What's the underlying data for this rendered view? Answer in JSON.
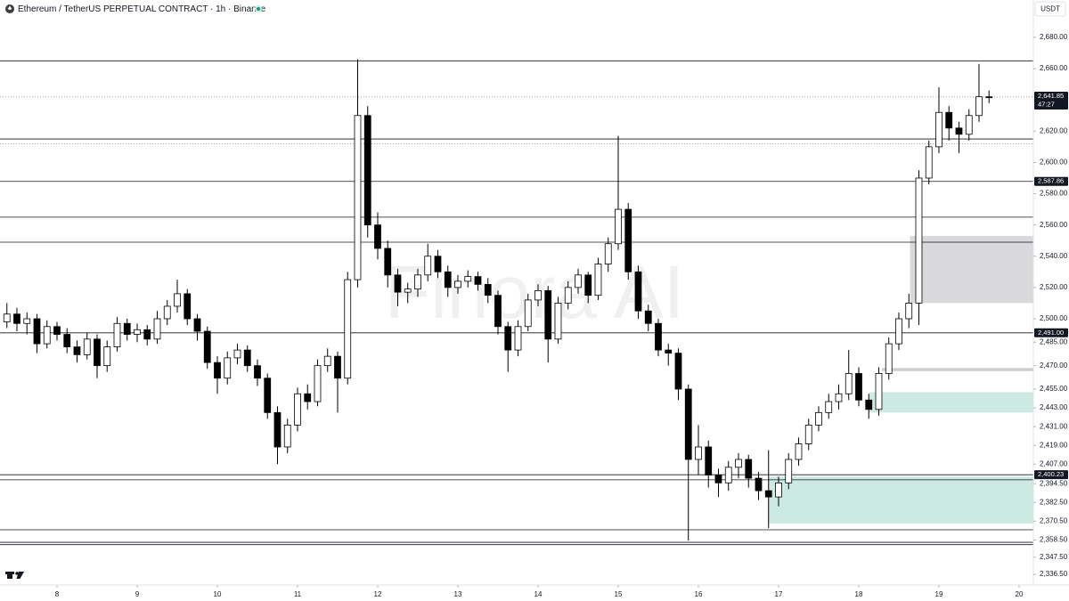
{
  "chart_data": {
    "type": "candlestick",
    "title": "Ethereum / TetherUS PERPETUAL CONTRACT · 1h · Binance",
    "currency": "USDT",
    "watermark": "Finora AI",
    "up_color": "#ffffff",
    "down_color": "#000000",
    "outline_color": "#000000",
    "x": [
      7.375,
      7.5,
      7.625,
      7.75,
      7.875,
      8,
      8.125,
      8.25,
      8.375,
      8.5,
      8.625,
      8.75,
      8.875,
      9,
      9.125,
      9.25,
      9.375,
      9.5,
      9.625,
      9.75,
      9.875,
      10,
      10.125,
      10.25,
      10.375,
      10.5,
      10.625,
      10.75,
      10.875,
      11,
      11.125,
      11.25,
      11.375,
      11.5,
      11.625,
      11.75,
      11.875,
      12,
      12.125,
      12.25,
      12.375,
      12.5,
      12.625,
      12.75,
      12.875,
      13,
      13.125,
      13.25,
      13.375,
      13.5,
      13.625,
      13.75,
      13.875,
      14,
      14.125,
      14.25,
      14.375,
      14.5,
      14.625,
      14.75,
      14.875,
      15,
      15.125,
      15.25,
      15.375,
      15.5,
      15.625,
      15.75,
      15.875,
      16,
      16.125,
      16.25,
      16.375,
      16.5,
      16.625,
      16.75,
      16.875,
      17,
      17.125,
      17.25,
      17.375,
      17.5,
      17.625,
      17.75,
      17.875,
      18,
      18.125,
      18.25,
      18.375,
      18.5,
      18.625,
      18.75,
      18.875,
      19,
      19.125,
      19.25,
      19.375,
      19.5,
      19.625
    ],
    "open": [
      2498,
      2503,
      2497,
      2500,
      2484,
      2495,
      2490,
      2482,
      2477,
      2487,
      2470,
      2482,
      2497,
      2490,
      2493,
      2487,
      2500,
      2508,
      2516,
      2500,
      2492,
      2472,
      2462,
      2475,
      2480,
      2470,
      2462,
      2440,
      2418,
      2432,
      2452,
      2447,
      2470,
      2476,
      2462,
      2525,
      2630,
      2560,
      2545,
      2528,
      2517,
      2519,
      2528,
      2540,
      2530,
      2520,
      2524,
      2527,
      2522,
      2515,
      2495,
      2480,
      2495,
      2512,
      2518,
      2487,
      2510,
      2520,
      2528,
      2515,
      2535,
      2548,
      2570,
      2530,
      2505,
      2497,
      2480,
      2478,
      2455,
      2410,
      2418,
      2400,
      2395,
      2405,
      2410,
      2398,
      2390,
      2386,
      2395,
      2410,
      2420,
      2432,
      2440,
      2447,
      2452,
      2465,
      2448,
      2442,
      2465,
      2484,
      2500,
      2510,
      2590,
      2610,
      2632,
      2622,
      2618,
      2630,
      2642
    ],
    "high": [
      2510,
      2507,
      2504,
      2503,
      2499,
      2498,
      2494,
      2486,
      2491,
      2490,
      2486,
      2501,
      2500,
      2497,
      2496,
      2505,
      2512,
      2525,
      2519,
      2503,
      2495,
      2476,
      2479,
      2484,
      2483,
      2474,
      2465,
      2444,
      2436,
      2456,
      2458,
      2474,
      2481,
      2479,
      2530,
      2666,
      2636,
      2568,
      2550,
      2532,
      2523,
      2532,
      2548,
      2544,
      2534,
      2528,
      2531,
      2530,
      2526,
      2518,
      2498,
      2499,
      2516,
      2522,
      2521,
      2514,
      2524,
      2532,
      2530,
      2539,
      2552,
      2617,
      2574,
      2534,
      2509,
      2500,
      2484,
      2481,
      2458,
      2432,
      2422,
      2404,
      2409,
      2414,
      2413,
      2402,
      2416,
      2399,
      2414,
      2424,
      2436,
      2444,
      2452,
      2458,
      2480,
      2469,
      2452,
      2469,
      2488,
      2504,
      2516,
      2595,
      2614,
      2648,
      2636,
      2626,
      2634,
      2663,
      2646
    ],
    "low": [
      2494,
      2492,
      2490,
      2478,
      2481,
      2486,
      2478,
      2472,
      2474,
      2462,
      2466,
      2479,
      2486,
      2485,
      2483,
      2484,
      2496,
      2504,
      2496,
      2486,
      2468,
      2452,
      2458,
      2471,
      2466,
      2457,
      2436,
      2407,
      2414,
      2428,
      2442,
      2444,
      2466,
      2440,
      2458,
      2520,
      2552,
      2538,
      2520,
      2508,
      2510,
      2514,
      2524,
      2526,
      2514,
      2516,
      2520,
      2518,
      2510,
      2490,
      2466,
      2476,
      2492,
      2508,
      2472,
      2484,
      2506,
      2516,
      2510,
      2512,
      2530,
      2544,
      2525,
      2500,
      2492,
      2476,
      2470,
      2448,
      2358,
      2400,
      2392,
      2386,
      2390,
      2398,
      2392,
      2384,
      2366,
      2380,
      2391,
      2406,
      2416,
      2428,
      2436,
      2442,
      2448,
      2444,
      2436,
      2438,
      2461,
      2480,
      2494,
      2496,
      2586,
      2606,
      2614,
      2606,
      2614,
      2626,
      2638
    ],
    "close": [
      2503,
      2497,
      2500,
      2484,
      2495,
      2490,
      2482,
      2477,
      2487,
      2470,
      2482,
      2497,
      2490,
      2493,
      2487,
      2500,
      2508,
      2516,
      2500,
      2492,
      2472,
      2462,
      2475,
      2480,
      2470,
      2462,
      2440,
      2418,
      2432,
      2452,
      2447,
      2470,
      2476,
      2462,
      2525,
      2630,
      2560,
      2545,
      2528,
      2517,
      2519,
      2528,
      2540,
      2530,
      2520,
      2524,
      2527,
      2522,
      2515,
      2495,
      2480,
      2495,
      2512,
      2518,
      2487,
      2510,
      2520,
      2528,
      2515,
      2535,
      2548,
      2570,
      2530,
      2505,
      2497,
      2480,
      2478,
      2455,
      2410,
      2418,
      2400,
      2395,
      2405,
      2410,
      2398,
      2390,
      2386,
      2395,
      2410,
      2420,
      2432,
      2440,
      2447,
      2452,
      2465,
      2448,
      2442,
      2465,
      2484,
      2500,
      2510,
      2590,
      2610,
      2632,
      2622,
      2618,
      2630,
      2642,
      2641.85
    ],
    "xlim": [
      7.289,
      20.178
    ],
    "xticks": [
      8,
      9,
      10,
      11,
      12,
      13,
      14,
      15,
      16,
      17,
      18,
      19,
      20
    ],
    "ylim": [
      2329.7,
      2703.9
    ],
    "yticks": [
      {
        "value": 2336.5,
        "label": "2,336.50"
      },
      {
        "value": 2347.5,
        "label": "2,347.50"
      },
      {
        "value": 2358.5,
        "label": "2,358.50"
      },
      {
        "value": 2370.5,
        "label": "2,370.50"
      },
      {
        "value": 2382.5,
        "label": "2,382.50"
      },
      {
        "value": 2394.5,
        "label": "2,394.50"
      },
      {
        "value": 2407,
        "label": "2,407.00"
      },
      {
        "value": 2419,
        "label": "2,419.00"
      },
      {
        "value": 2431,
        "label": "2,431.00"
      },
      {
        "value": 2443,
        "label": "2,443.00"
      },
      {
        "value": 2455,
        "label": "2,455.00"
      },
      {
        "value": 2470,
        "label": "2,470.00"
      },
      {
        "value": 2485,
        "label": "2,485.00"
      },
      {
        "value": 2500,
        "label": "2,500.00"
      },
      {
        "value": 2520,
        "label": "2,520.00"
      },
      {
        "value": 2540,
        "label": "2,540.00"
      },
      {
        "value": 2560,
        "label": "2,560.00"
      },
      {
        "value": 2580,
        "label": "2,580.00"
      },
      {
        "value": 2600,
        "label": "2,600.00"
      },
      {
        "value": 2620,
        "label": "2,620.00"
      },
      {
        "value": 2660,
        "label": "2,660.00"
      },
      {
        "value": 2680,
        "label": "2,680.00"
      }
    ],
    "levels": [
      2665,
      2615,
      2587.86,
      2565,
      2549,
      2491,
      2400.23,
      2397,
      2365,
      2357,
      2355.5
    ],
    "dotted_levels": [
      2612
    ],
    "price_labels": [
      {
        "value": 2641.85,
        "label": "2,641.85"
      },
      {
        "value": 2587.86,
        "label": "2,587.86"
      },
      {
        "value": 2491,
        "label": "2,491.00"
      },
      {
        "value": 2400.23,
        "label": "2,400.23"
      }
    ],
    "countdown": "47:27",
    "zones": [
      {
        "x": 18.64,
        "low": 2510,
        "high": 2553,
        "color": "#d9d9db"
      },
      {
        "x": 18.29,
        "low": 2466.5,
        "high": 2468.5,
        "color": "#cfcfd1"
      },
      {
        "x": 18.13,
        "low": 2440,
        "high": 2453,
        "color": "#cdeae2"
      },
      {
        "x": 16.87,
        "low": 2369,
        "high": 2399,
        "color": "#cdeae2"
      }
    ]
  }
}
